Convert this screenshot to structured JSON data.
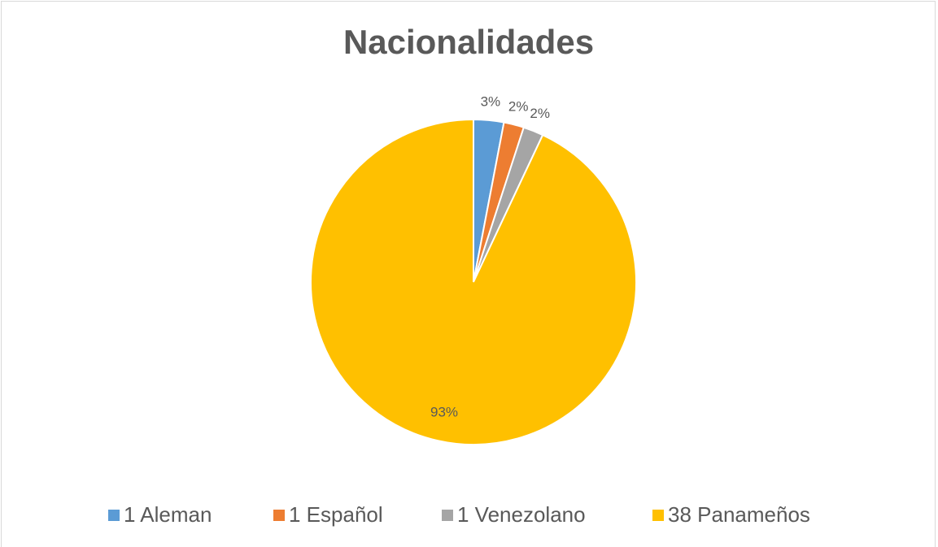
{
  "chart_data": {
    "type": "pie",
    "title": "Nacionalidades",
    "categories": [
      "1 Aleman",
      "1 Español",
      "1 Venezolano",
      "38 Panameños"
    ],
    "values": [
      3,
      2,
      2,
      93
    ],
    "value_labels": [
      "3%",
      "2%",
      "2%",
      "93%"
    ],
    "colors": [
      "#5b9bd5",
      "#ed7d31",
      "#a5a5a5",
      "#ffc000"
    ],
    "legend": "bottom"
  }
}
